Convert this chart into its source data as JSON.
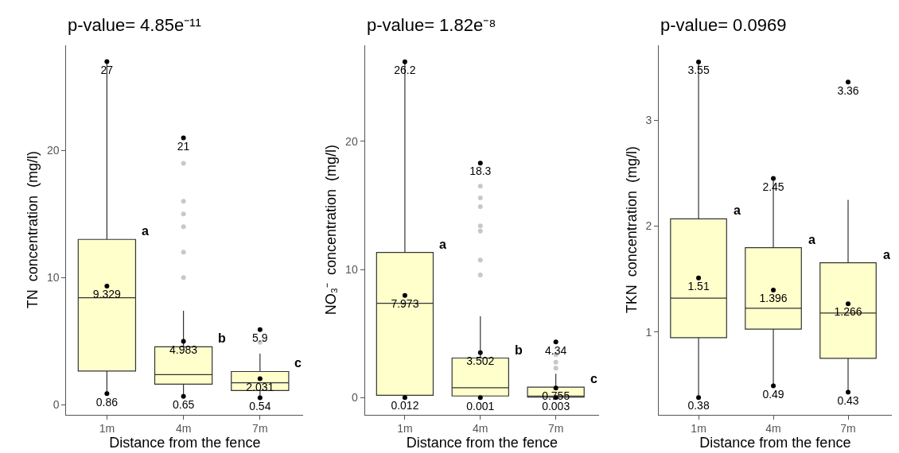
{
  "chart_data": [
    {
      "type": "box",
      "title": "p-value= 4.85e⁻¹¹",
      "xlabel": "Distance from the fence",
      "ylabel": "TN  concentration  (mg/l)",
      "categories": [
        "1m",
        "4m",
        "7m"
      ],
      "ylim": [
        -0.78,
        28.3
      ],
      "yticks": [
        0,
        10,
        20
      ],
      "boxes": [
        {
          "low": 0.86,
          "q1": 2.64,
          "median": 8.41,
          "q3": 13.0,
          "high": 27
        },
        {
          "low": 0.65,
          "q1": 1.6,
          "median": 2.36,
          "q3": 4.55,
          "high": 7.39,
          "outliers": [
            10.0,
            12.0,
            14.0,
            15.0,
            16.0,
            19.0
          ]
        },
        {
          "low": 0.54,
          "q1": 1.1,
          "median": 1.71,
          "q3": 2.6,
          "high": 4.0,
          "outliers": [
            4.9
          ]
        }
      ],
      "series": [
        {
          "type": "scatter",
          "color": "#000000",
          "x": [
            "1m",
            "4m",
            "7m"
          ],
          "values": [
            27,
            21,
            5.9
          ],
          "value_labels": [
            "27",
            "21",
            "5.9"
          ]
        },
        {
          "type": "scatter",
          "color": "#000000",
          "x": [
            "1m",
            "4m",
            "7m"
          ],
          "values": [
            9.329,
            4.983,
            2.031
          ],
          "value_labels": [
            "9.329",
            "4.983",
            "2.031"
          ]
        },
        {
          "type": "scatter",
          "color": "#000000",
          "x": [
            "1m",
            "4m",
            "7m"
          ],
          "values": [
            0.86,
            0.65,
            0.54
          ],
          "value_labels": [
            "0.86",
            "0.65",
            "0.54"
          ]
        }
      ],
      "annotations": [
        "a",
        "b",
        "c"
      ]
    },
    {
      "type": "box",
      "title": "p-value= 1.82e⁻⁸",
      "xlabel": "Distance from the fence",
      "ylabel": "NO₃⁻  concentration  (mg/l)",
      "categories": [
        "1m",
        "4m",
        "7m"
      ],
      "ylim": [
        -1.31,
        27.5
      ],
      "yticks": [
        0,
        10,
        20
      ],
      "boxes": [
        {
          "low": 0.012,
          "q1": 0.19,
          "median": 7.36,
          "q3": 11.33,
          "high": 26.2
        },
        {
          "low": 0.001,
          "q1": 0.13,
          "median": 0.77,
          "q3": 3.09,
          "high": 6.35,
          "outliers": [
            9.57,
            10.73,
            13.0,
            13.39,
            14.9,
            15.58,
            16.5
          ]
        },
        {
          "low": 0.003,
          "q1": 0.04,
          "median": 0.13,
          "q3": 0.82,
          "high": 1.87,
          "outliers": [
            2.3,
            2.77,
            3.35
          ]
        }
      ],
      "series": [
        {
          "type": "scatter",
          "color": "#000000",
          "x": [
            "1m",
            "4m",
            "7m"
          ],
          "values": [
            26.2,
            18.3,
            4.34
          ],
          "value_labels": [
            "26.2",
            "18.3",
            "4.34"
          ]
        },
        {
          "type": "scatter",
          "color": "#000000",
          "x": [
            "1m",
            "4m",
            "7m"
          ],
          "values": [
            7.973,
            3.502,
            0.755
          ],
          "value_labels": [
            "7.973",
            "3.502",
            "0.755"
          ]
        },
        {
          "type": "scatter",
          "color": "#000000",
          "x": [
            "1m",
            "4m",
            "7m"
          ],
          "values": [
            0.012,
            0.001,
            0.003
          ],
          "value_labels": [
            "0.012",
            "0.001",
            "0.003"
          ]
        }
      ],
      "annotations": [
        "a",
        "b",
        "c"
      ]
    },
    {
      "type": "box",
      "title": "p-value= 0.0969",
      "xlabel": "Distance from the fence",
      "ylabel": "TKN  concentration  (mg/l)",
      "categories": [
        "1m",
        "4m",
        "7m"
      ],
      "ylim": [
        0.22,
        3.71
      ],
      "yticks": [
        1,
        2,
        3
      ],
      "boxes": [
        {
          "low": 0.38,
          "q1": 0.946,
          "median": 1.319,
          "q3": 2.069,
          "high": 3.55
        },
        {
          "low": 0.49,
          "q1": 1.026,
          "median": 1.224,
          "q3": 1.796,
          "high": 2.45
        },
        {
          "low": 0.43,
          "q1": 0.75,
          "median": 1.179,
          "q3": 1.653,
          "high": 2.247
        }
      ],
      "series": [
        {
          "type": "scatter",
          "color": "#000000",
          "x": [
            "1m",
            "4m",
            "7m"
          ],
          "values": [
            3.55,
            2.45,
            3.36
          ],
          "value_labels": [
            "3.55",
            "2.45",
            "3.36"
          ]
        },
        {
          "type": "scatter",
          "color": "#000000",
          "x": [
            "1m",
            "4m",
            "7m"
          ],
          "values": [
            1.51,
            1.396,
            1.266
          ],
          "value_labels": [
            "1.51",
            "1.396",
            "1.266"
          ]
        },
        {
          "type": "scatter",
          "color": "#000000",
          "x": [
            "1m",
            "4m",
            "7m"
          ],
          "values": [
            0.38,
            0.49,
            0.43
          ],
          "value_labels": [
            "0.38",
            "0.49",
            "0.43"
          ]
        }
      ],
      "annotations": [
        "a",
        "a",
        "a"
      ]
    }
  ]
}
